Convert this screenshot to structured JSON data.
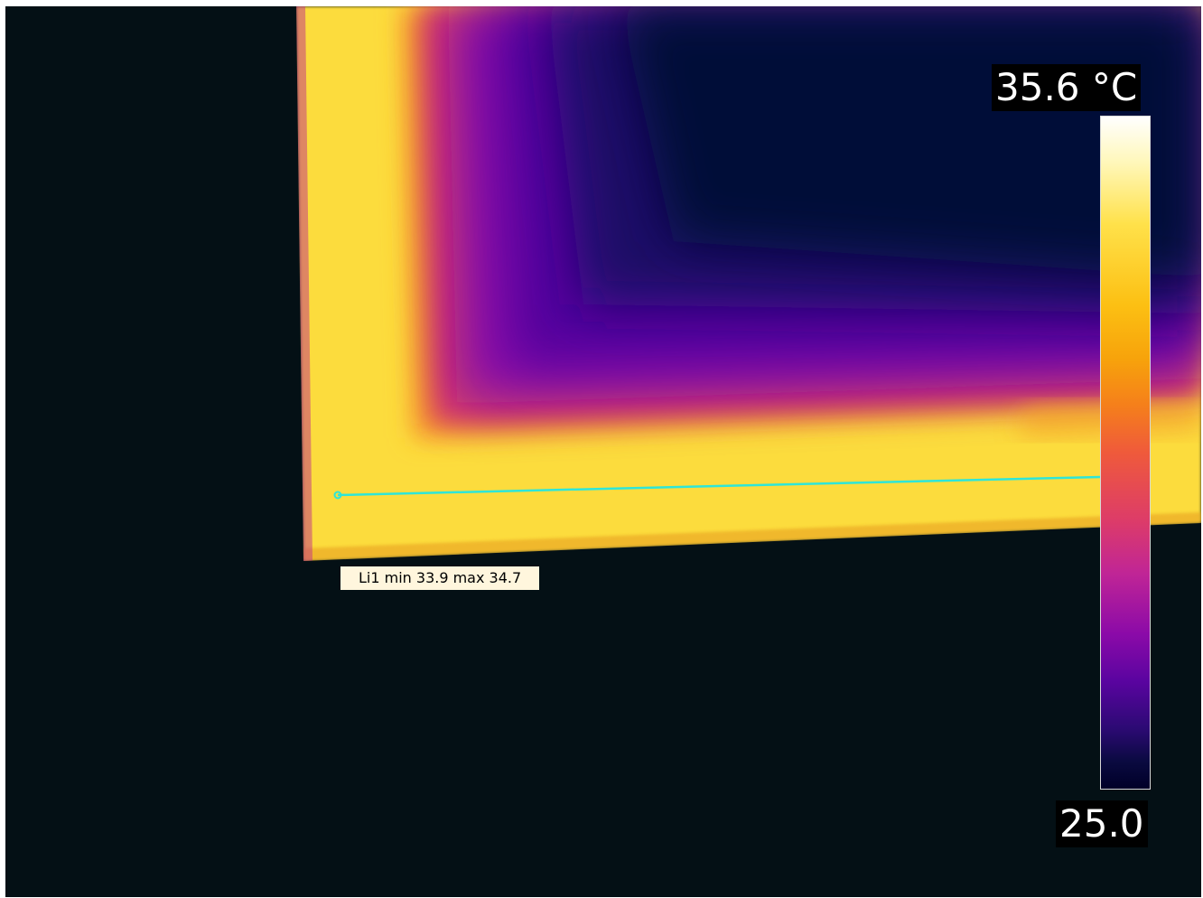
{
  "thermal_image": {
    "palette": "iron",
    "scale_max_label": "35.6 °C",
    "scale_min_label": "25.0",
    "scale_max_value": 35.6,
    "scale_min_value": 25.0,
    "measurement_line": {
      "label": "Li1 min 33.9 max 34.7",
      "color": "#2ee6d8"
    }
  }
}
